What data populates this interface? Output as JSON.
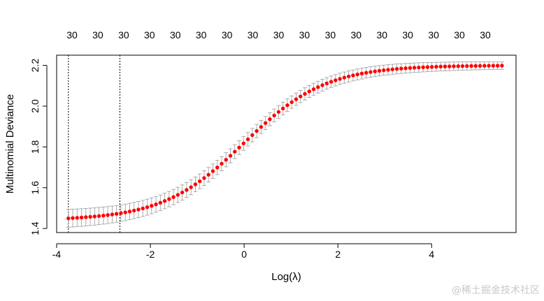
{
  "chart_data": {
    "type": "scatter",
    "title": "",
    "xlabel": "Log(λ)",
    "ylabel": "Multinomial Deviance",
    "xlim": [
      -4,
      5.8
    ],
    "ylim": [
      1.38,
      2.25
    ],
    "x_ticks": [
      -4,
      -2,
      0,
      2,
      4
    ],
    "y_ticks": [
      1.4,
      1.6,
      1.8,
      2.0,
      2.2
    ],
    "top_axis_labels": [
      "30",
      "30",
      "30",
      "30",
      "30",
      "30",
      "30",
      "30",
      "30",
      "30",
      "30",
      "30",
      "30",
      "30",
      "30",
      "30",
      "30"
    ],
    "vertical_lines": [
      -3.75,
      -2.65
    ],
    "series": [
      {
        "point_color": "#ff0000",
        "errorbar_color": "#999999",
        "x_range": [
          -3.75,
          5.5
        ],
        "n_points": 100,
        "curve_description": "sigmoid rise of deviance with log lambda",
        "lower_plateau": 1.44,
        "upper_plateau": 2.2,
        "midpoint_x": 0.0,
        "steepness": 1.15,
        "errorbar_halfwidth": [
          0.044,
          0.018
        ]
      }
    ]
  },
  "watermark": "@稀土掘金技术社区"
}
